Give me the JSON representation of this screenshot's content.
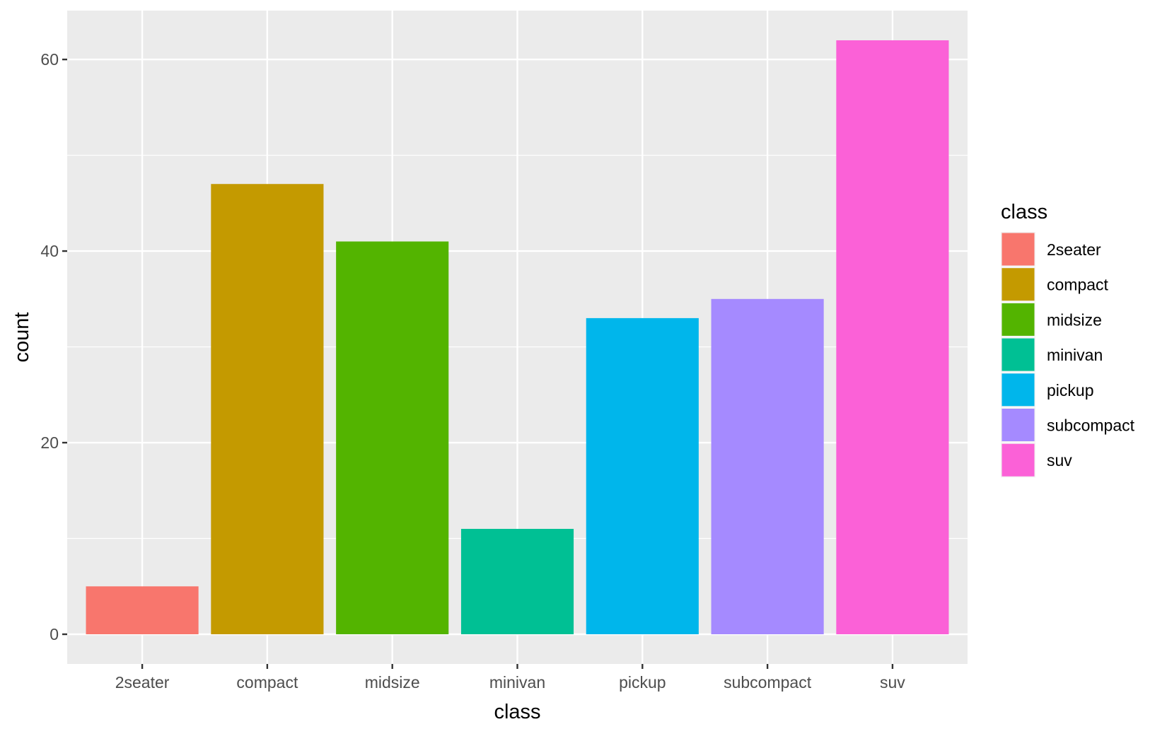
{
  "chart_data": {
    "type": "bar",
    "title": "",
    "xlabel": "class",
    "ylabel": "count",
    "categories": [
      "2seater",
      "compact",
      "midsize",
      "minivan",
      "pickup",
      "subcompact",
      "suv"
    ],
    "values": [
      5,
      47,
      41,
      11,
      33,
      35,
      62
    ],
    "colors": [
      "#F8766D",
      "#C49A00",
      "#53B400",
      "#00C094",
      "#00B6EB",
      "#A58AFF",
      "#FB61D7"
    ],
    "yticks": [
      0,
      20,
      40,
      60
    ],
    "ylim": [
      -3.1,
      65.1
    ],
    "grid": true,
    "panel_background": "#EBEBEB",
    "grid_color": "#FFFFFF",
    "legend": {
      "title": "class",
      "position": "right",
      "entries": [
        "2seater",
        "compact",
        "midsize",
        "minivan",
        "pickup",
        "subcompact",
        "suv"
      ]
    }
  }
}
